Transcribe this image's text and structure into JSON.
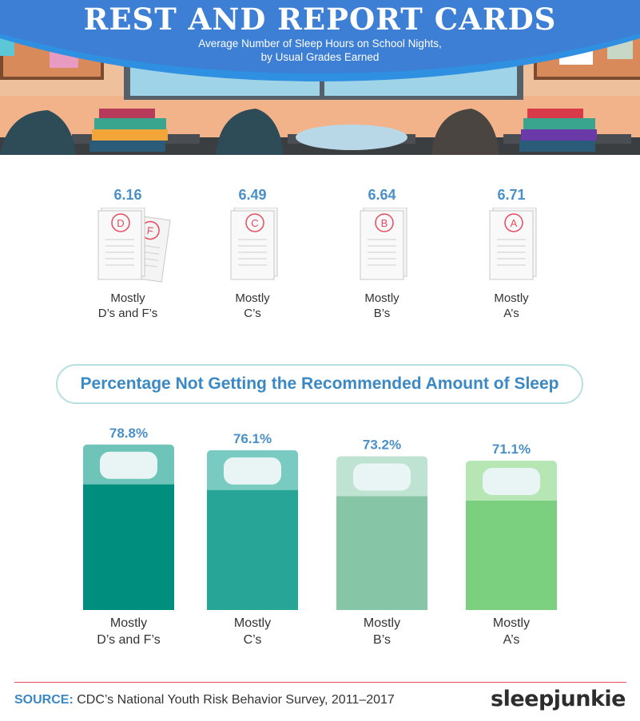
{
  "header": {
    "title": "REST AND REPORT CARDS",
    "subtitle_line1": "Average Number of Sleep Hours on School Nights,",
    "subtitle_line2": "by Usual Grades Earned"
  },
  "grades": [
    {
      "hours": "6.16",
      "letter": "D",
      "letter2": "F",
      "label_line1": "Mostly",
      "label_line2": "D’s and F’s"
    },
    {
      "hours": "6.49",
      "letter": "C",
      "label_line1": "Mostly",
      "label_line2": "C’s"
    },
    {
      "hours": "6.64",
      "letter": "B",
      "label_line1": "Mostly",
      "label_line2": "B’s"
    },
    {
      "hours": "6.71",
      "letter": "A",
      "label_line1": "Mostly",
      "label_line2": "A’s"
    }
  ],
  "banner": "Percentage Not Getting the Recommended Amount of Sleep",
  "chart_data": [
    {
      "type": "bar",
      "categories": [
        "Mostly D’s and F’s",
        "Mostly C’s",
        "Mostly B’s",
        "Mostly A’s"
      ],
      "values": [
        6.16,
        6.49,
        6.64,
        6.71
      ],
      "title": "Average Number of Sleep Hours on School Nights, by Usual Grades Earned",
      "unit": "hours"
    },
    {
      "type": "bar",
      "title": "Percentage Not Getting the Recommended Amount of Sleep",
      "categories": [
        "Mostly D’s and F’s",
        "Mostly C’s",
        "Mostly B’s",
        "Mostly A’s"
      ],
      "values": [
        78.8,
        76.1,
        73.2,
        71.1
      ],
      "value_labels": [
        "78.8%",
        "76.1%",
        "73.2%",
        "71.1%"
      ],
      "colors": [
        "#008f7e",
        "#27a596",
        "#86c5a6",
        "#7bd080"
      ],
      "head_colors": [
        "#6ec4b8",
        "#79cbc1",
        "#bfe3d2",
        "#b5e6b3"
      ]
    }
  ],
  "bar_labels": [
    {
      "line1": "Mostly",
      "line2": "D’s and F’s"
    },
    {
      "line1": "Mostly",
      "line2": "C’s"
    },
    {
      "line1": "Mostly",
      "line2": "B’s"
    },
    {
      "line1": "Mostly",
      "line2": "A’s"
    }
  ],
  "footer": {
    "source_label": "SOURCE:",
    "source_text": "CDC’s National Youth Risk Behavior Survey, 2011–2017",
    "logo": "sleepjunkie"
  },
  "colors": {
    "title_blue": "#3a89c4",
    "value_blue": "#4a90c8",
    "grade_red": "#e84a5f"
  }
}
